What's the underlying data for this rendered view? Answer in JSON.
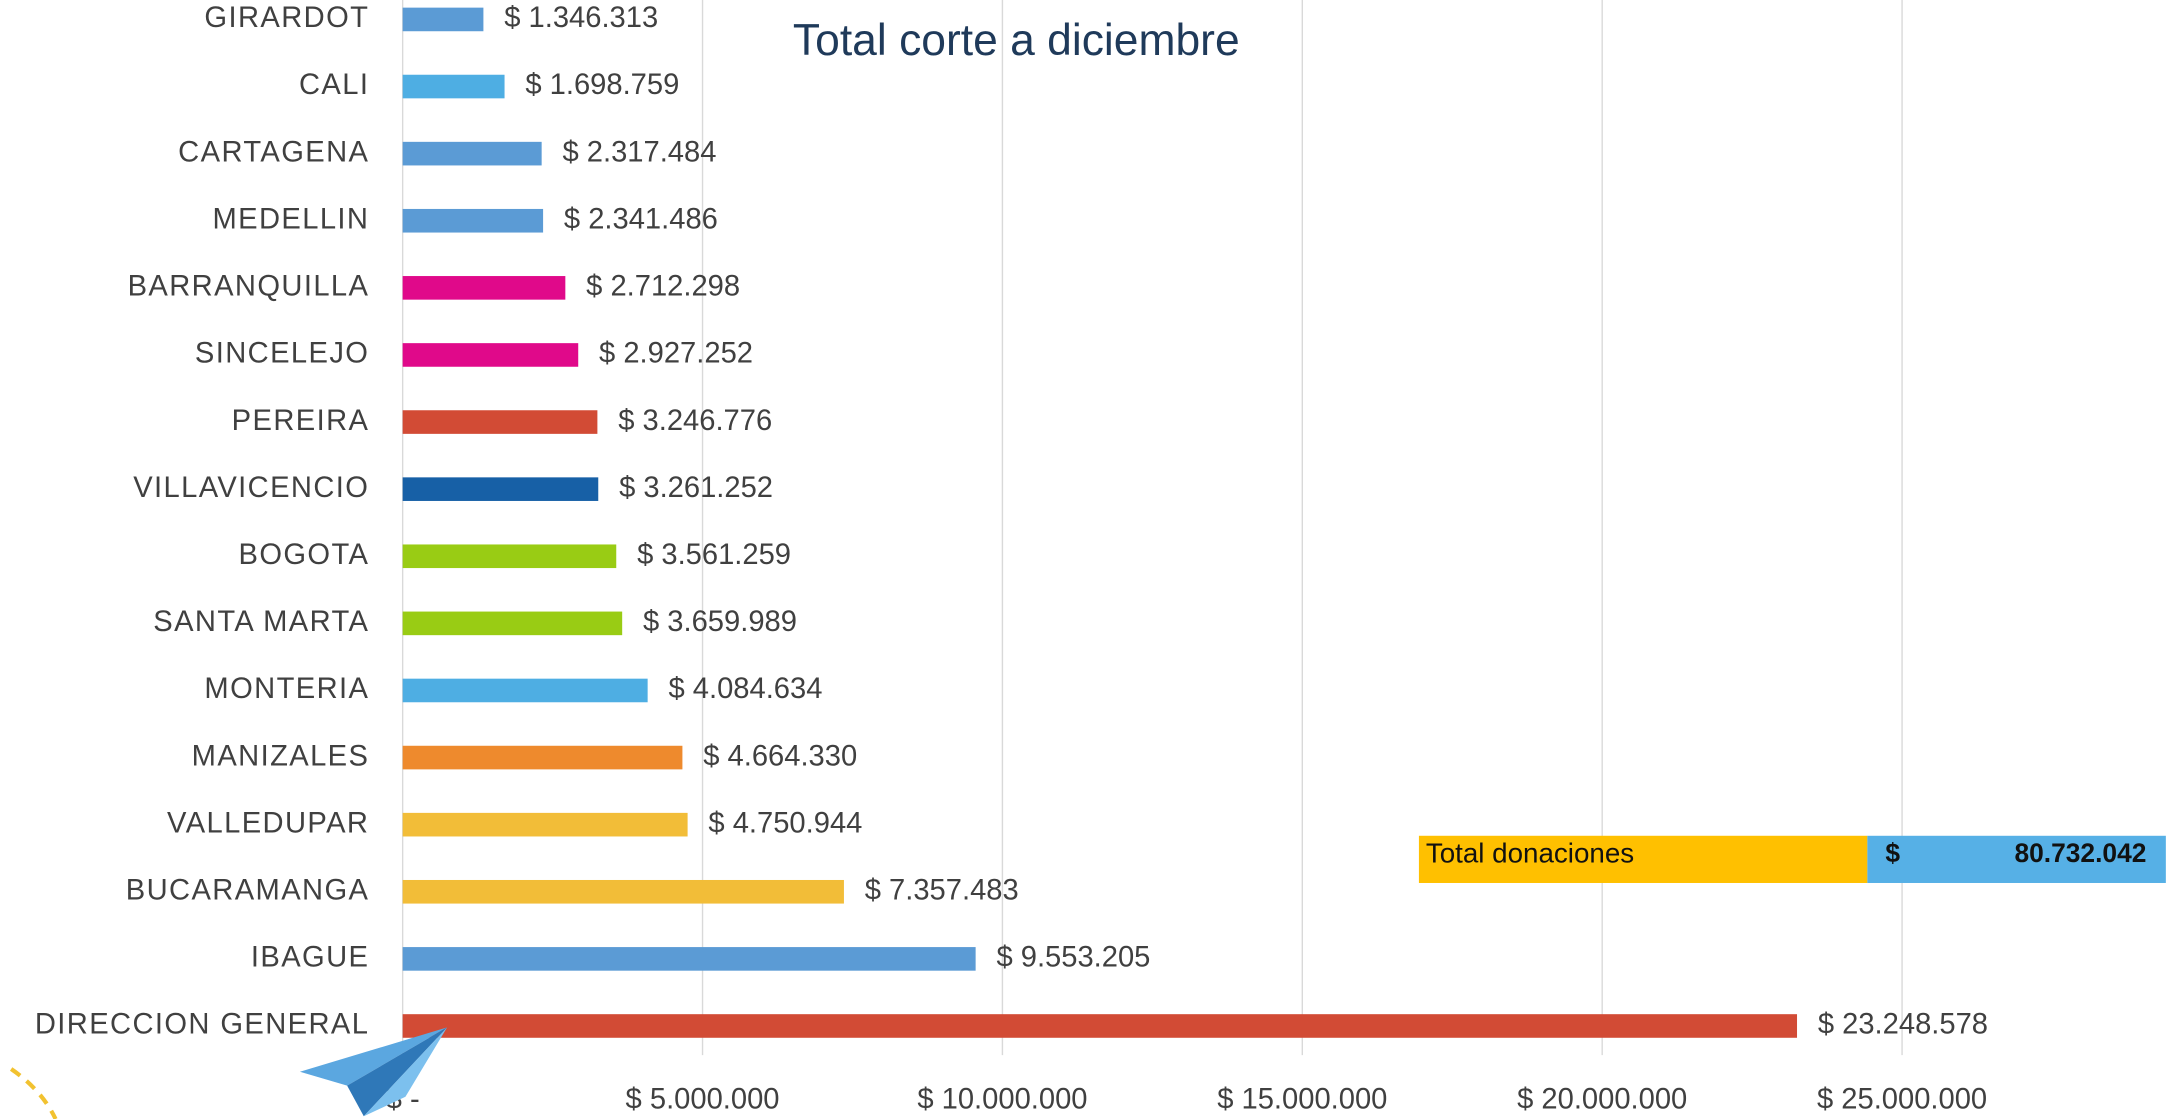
{
  "chart_data": {
    "type": "hbar",
    "title": "Total corte a diciembre",
    "categories": [
      "GIRARDOT",
      "CALI",
      "CARTAGENA",
      "MEDELLIN",
      "BARRANQUILLA",
      "SINCELEJO",
      "PEREIRA",
      "VILLAVICENCIO",
      "BOGOTA",
      "SANTA MARTA",
      "MONTERIA",
      "MANIZALES",
      "VALLEDUPAR",
      "BUCARAMANGA",
      "IBAGUE",
      "DIRECCION GENERAL"
    ],
    "values": [
      1346313,
      1698759,
      2317484,
      2341486,
      2712298,
      2927252,
      3246776,
      3261252,
      3561259,
      3659989,
      4084634,
      4664330,
      4750944,
      7357483,
      9553205,
      23248578
    ],
    "value_labels": [
      "$ 1.346.313",
      "$ 1.698.759",
      "$ 2.317.484",
      "$ 2.341.486",
      "$ 2.712.298",
      "$ 2.927.252",
      "$ 3.246.776",
      "$ 3.261.252",
      "$ 3.561.259",
      "$ 3.659.989",
      "$ 4.084.634",
      "$ 4.664.330",
      "$ 4.750.944",
      "$ 7.357.483",
      "$ 9.553.205",
      "$ 23.248.578"
    ],
    "colors": [
      "#5b9bd5",
      "#4eaee3",
      "#5b9bd5",
      "#5b9bd5",
      "#e0098a",
      "#e0098a",
      "#d24b35",
      "#1760a6",
      "#99cc14",
      "#99cc14",
      "#4eaee3",
      "#ee8a2d",
      "#f2bd38",
      "#f2bd38",
      "#5b9bd5",
      "#d24b35"
    ],
    "xlim": [
      0,
      29600000
    ],
    "xticks": [
      {
        "value": 0,
        "label": "$ -"
      },
      {
        "value": 5000000,
        "label": "$ 5.000.000"
      },
      {
        "value": 10000000,
        "label": "$ 10.000.000"
      },
      {
        "value": 15000000,
        "label": "$ 15.000.000"
      },
      {
        "value": 20000000,
        "label": "$ 20.000.000"
      },
      {
        "value": 25000000,
        "label": "$ 25.000.000"
      }
    ],
    "grid": true,
    "total": {
      "label": "Total donaciones",
      "currency": "$",
      "amount": "80.732.042"
    }
  }
}
